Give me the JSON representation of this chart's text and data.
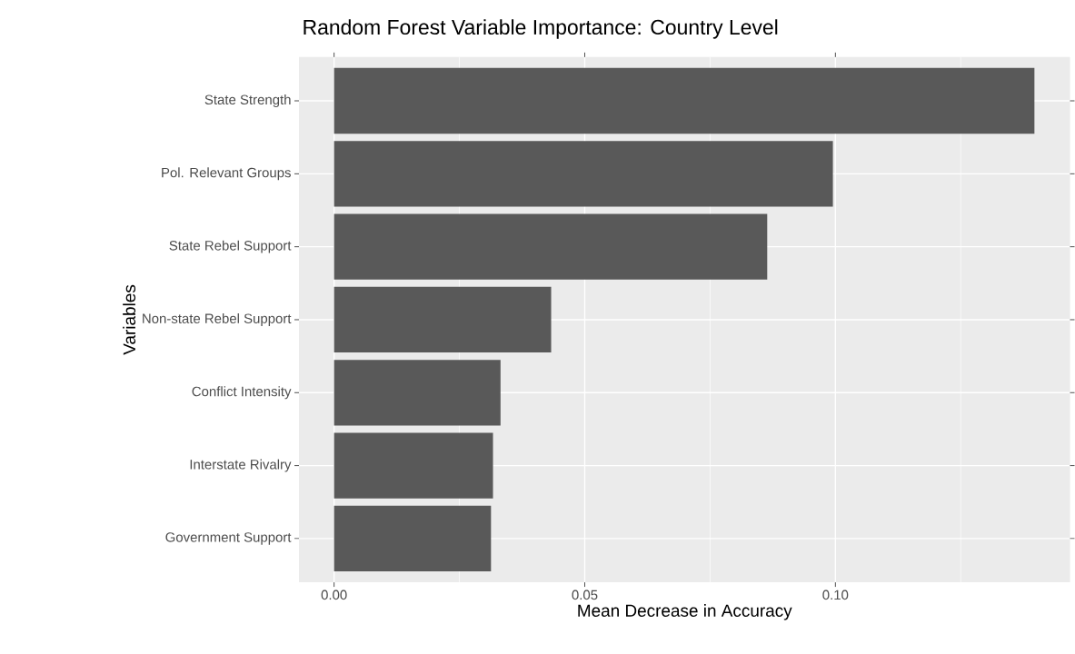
{
  "chart_data": {
    "type": "bar",
    "orientation": "horizontal",
    "title": "Random Forest Variable Importance: Country Level",
    "xlabel": "Mean Decrease in Accuracy",
    "ylabel": "Variables",
    "categories": [
      "State Strength",
      "Pol. Relevant Groups",
      "State Rebel Support",
      "Non-state Rebel Support",
      "Conflict Intensity",
      "Interstate Rivalry",
      "Government Support"
    ],
    "values": [
      0.1397,
      0.0995,
      0.0864,
      0.0433,
      0.0332,
      0.0317,
      0.0313
    ],
    "color": "#595959",
    "xlim": [
      -0.007,
      0.1468
    ],
    "xticks": [
      {
        "value": 0,
        "label": "0.00"
      },
      {
        "value": 0.05,
        "label": "0.05"
      },
      {
        "value": 0.1,
        "label": "0.10"
      }
    ],
    "grid": true
  }
}
